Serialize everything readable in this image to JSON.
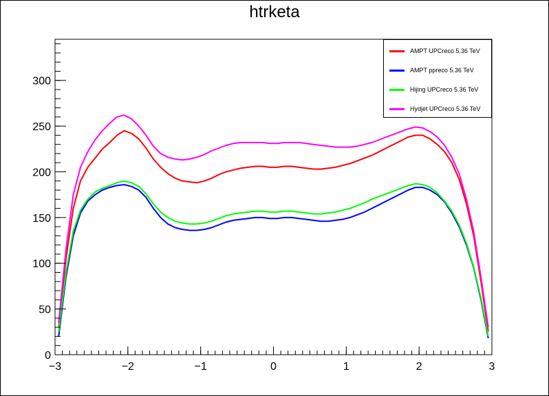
{
  "chart_data": {
    "type": "line",
    "title": "htrketa",
    "xlabel": "",
    "ylabel": "",
    "xlim": [
      -3,
      3
    ],
    "ylim": [
      0,
      345
    ],
    "x_ticks": [
      "−3",
      "−2",
      "−1",
      "0",
      "1",
      "2",
      "3"
    ],
    "y_ticks": [
      "0",
      "50",
      "100",
      "150",
      "200",
      "250",
      "300"
    ],
    "legend_position": "top-right",
    "x": [
      -2.95,
      -2.85,
      -2.75,
      -2.65,
      -2.55,
      -2.45,
      -2.35,
      -2.25,
      -2.15,
      -2.05,
      -1.95,
      -1.85,
      -1.75,
      -1.65,
      -1.55,
      -1.45,
      -1.35,
      -1.25,
      -1.15,
      -1.05,
      -0.95,
      -0.85,
      -0.75,
      -0.65,
      -0.55,
      -0.45,
      -0.35,
      -0.25,
      -0.15,
      -0.05,
      0.05,
      0.15,
      0.25,
      0.35,
      0.45,
      0.55,
      0.65,
      0.75,
      0.85,
      0.95,
      1.05,
      1.15,
      1.25,
      1.35,
      1.45,
      1.55,
      1.65,
      1.75,
      1.85,
      1.95,
      2.05,
      2.15,
      2.25,
      2.35,
      2.45,
      2.55,
      2.65,
      2.75,
      2.85,
      2.95
    ],
    "series": [
      {
        "name": "AMPT UPCreco 5.36 TeV",
        "color": "#ff0000",
        "values": [
          30,
          105,
          160,
          190,
          205,
          215,
          225,
          232,
          240,
          245,
          242,
          236,
          226,
          214,
          205,
          198,
          193,
          190,
          189,
          188,
          190,
          193,
          197,
          200,
          202,
          204,
          205,
          206,
          206,
          205,
          205,
          206,
          206,
          205,
          204,
          203,
          203,
          204,
          205,
          207,
          209,
          212,
          215,
          218,
          222,
          226,
          230,
          234,
          238,
          240,
          240,
          236,
          230,
          222,
          210,
          192,
          165,
          130,
          80,
          25
        ]
      },
      {
        "name": "AMPT ppreco 5.36 TeV",
        "color": "#0000ff",
        "values": [
          20,
          85,
          130,
          155,
          168,
          175,
          180,
          183,
          185,
          186,
          184,
          180,
          172,
          160,
          150,
          143,
          139,
          137,
          136,
          136,
          137,
          139,
          142,
          145,
          147,
          148,
          149,
          150,
          150,
          149,
          149,
          150,
          150,
          149,
          148,
          147,
          146,
          146,
          147,
          148,
          150,
          153,
          156,
          160,
          164,
          168,
          172,
          176,
          180,
          183,
          183,
          180,
          175,
          167,
          155,
          140,
          120,
          95,
          60,
          18
        ]
      },
      {
        "name": "Hijing UPCreco 5.36 TeV",
        "color": "#00ff00",
        "values": [
          25,
          90,
          135,
          158,
          170,
          178,
          182,
          185,
          188,
          190,
          188,
          184,
          176,
          165,
          156,
          150,
          146,
          144,
          143,
          143,
          144,
          146,
          149,
          152,
          154,
          155,
          156,
          157,
          157,
          156,
          156,
          157,
          157,
          156,
          155,
          154,
          154,
          155,
          156,
          158,
          160,
          163,
          166,
          170,
          173,
          176,
          179,
          182,
          185,
          187,
          186,
          183,
          177,
          168,
          157,
          142,
          122,
          96,
          62,
          20
        ]
      },
      {
        "name": "Hydjet UPCreco 5.36 TeV",
        "color": "#ff00ff",
        "values": [
          35,
          115,
          175,
          205,
          222,
          235,
          245,
          253,
          260,
          262,
          258,
          250,
          240,
          228,
          220,
          216,
          214,
          213,
          214,
          216,
          219,
          223,
          226,
          229,
          231,
          232,
          232,
          232,
          232,
          231,
          231,
          232,
          232,
          232,
          231,
          230,
          229,
          228,
          227,
          227,
          227,
          228,
          230,
          232,
          235,
          238,
          241,
          244,
          247,
          249,
          248,
          244,
          238,
          229,
          216,
          198,
          170,
          135,
          85,
          30
        ]
      }
    ]
  }
}
